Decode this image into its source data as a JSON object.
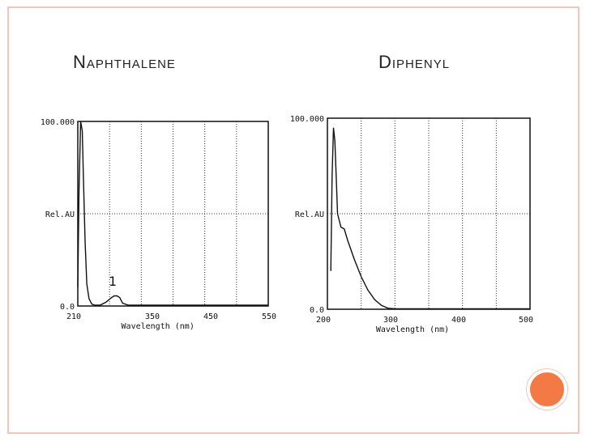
{
  "slide": {
    "left_title": "Naphthalene",
    "right_title": "Diphenyl",
    "accent_color": "#f47a45",
    "frame_color": "#f3c6b9"
  },
  "chart_data": [
    {
      "type": "line",
      "name": "Naphthalene",
      "title": "",
      "xlabel": "Wavelength (nm)",
      "ylabel": "Rel.AU",
      "xlim": [
        210,
        550
      ],
      "ylim": [
        0,
        100
      ],
      "xticks": [
        "210",
        "350",
        "450",
        "550"
      ],
      "yticks": [
        "100.000",
        "Rel.AU",
        "0.0"
      ],
      "annotation": "1",
      "grid": true,
      "series": [
        {
          "x": [
            210,
            212,
            215,
            218,
            220,
            223,
            226,
            230,
            235,
            240,
            250,
            260,
            270,
            275,
            280,
            285,
            290,
            300,
            320,
            350,
            400,
            450,
            500,
            550
          ],
          "y": [
            10,
            60,
            100,
            95,
            70,
            35,
            12,
            4,
            1,
            0.5,
            0.5,
            2,
            4.5,
            5.5,
            5.5,
            4.5,
            1.5,
            0.5,
            0.5,
            0.5,
            0.5,
            0.5,
            0.5,
            0.5
          ]
        }
      ]
    },
    {
      "type": "line",
      "name": "Diphenyl",
      "title": "",
      "xlabel": "Wavelength (nm)",
      "ylabel": "Rel.AU",
      "xlim": [
        200,
        500
      ],
      "ylim": [
        0,
        100
      ],
      "xticks": [
        "200",
        "300",
        "400",
        "500"
      ],
      "yticks": [
        "100.000",
        "Rel.AU",
        "0.0"
      ],
      "grid": true,
      "series": [
        {
          "x": [
            205,
            207,
            209,
            211,
            213,
            215,
            220,
            225,
            230,
            240,
            250,
            260,
            270,
            280,
            290,
            300,
            350,
            400,
            450,
            500
          ],
          "y": [
            20,
            70,
            95,
            88,
            70,
            50,
            43,
            42,
            36,
            26,
            17,
            10,
            5,
            2,
            0.5,
            0.2,
            0.2,
            0.2,
            0.2,
            0.2
          ]
        }
      ]
    }
  ]
}
